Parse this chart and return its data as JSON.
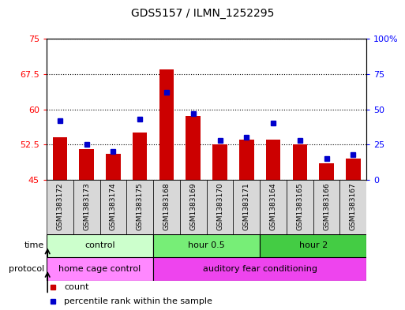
{
  "title": "GDS5157 / ILMN_1252295",
  "samples": [
    "GSM1383172",
    "GSM1383173",
    "GSM1383174",
    "GSM1383175",
    "GSM1383168",
    "GSM1383169",
    "GSM1383170",
    "GSM1383171",
    "GSM1383164",
    "GSM1383165",
    "GSM1383166",
    "GSM1383167"
  ],
  "bar_values": [
    54.0,
    51.5,
    50.5,
    55.0,
    68.5,
    58.5,
    52.5,
    53.5,
    53.5,
    52.5,
    48.5,
    49.5
  ],
  "percentile_values": [
    42,
    25,
    20,
    43,
    62,
    47,
    28,
    30,
    40,
    28,
    15,
    18
  ],
  "bar_color": "#cc0000",
  "dot_color": "#0000cc",
  "bar_bottom": 45,
  "ylim_left": [
    45,
    75
  ],
  "ylim_right": [
    0,
    100
  ],
  "yticks_left": [
    45,
    52.5,
    60,
    67.5,
    75
  ],
  "yticks_right": [
    0,
    25,
    50,
    75,
    100
  ],
  "ytick_labels_left": [
    "45",
    "52.5",
    "60",
    "67.5",
    "75"
  ],
  "ytick_labels_right": [
    "0",
    "25",
    "50",
    "75",
    "100%"
  ],
  "time_groups": [
    {
      "label": "control",
      "start": 0,
      "end": 4,
      "color": "#ccffcc"
    },
    {
      "label": "hour 0.5",
      "start": 4,
      "end": 8,
      "color": "#77ee77"
    },
    {
      "label": "hour 2",
      "start": 8,
      "end": 12,
      "color": "#44cc44"
    }
  ],
  "protocol_groups": [
    {
      "label": "home cage control",
      "start": 0,
      "end": 4,
      "color": "#ff88ff"
    },
    {
      "label": "auditory fear conditioning",
      "start": 4,
      "end": 12,
      "color": "#ee44ee"
    }
  ],
  "time_label": "time",
  "protocol_label": "protocol",
  "legend_count": "count",
  "legend_percentile": "percentile rank within the sample",
  "bar_width": 0.55,
  "background_color": "#ffffff",
  "plot_bg_color": "#ffffff",
  "xlabel_bg_color": "#d8d8d8"
}
